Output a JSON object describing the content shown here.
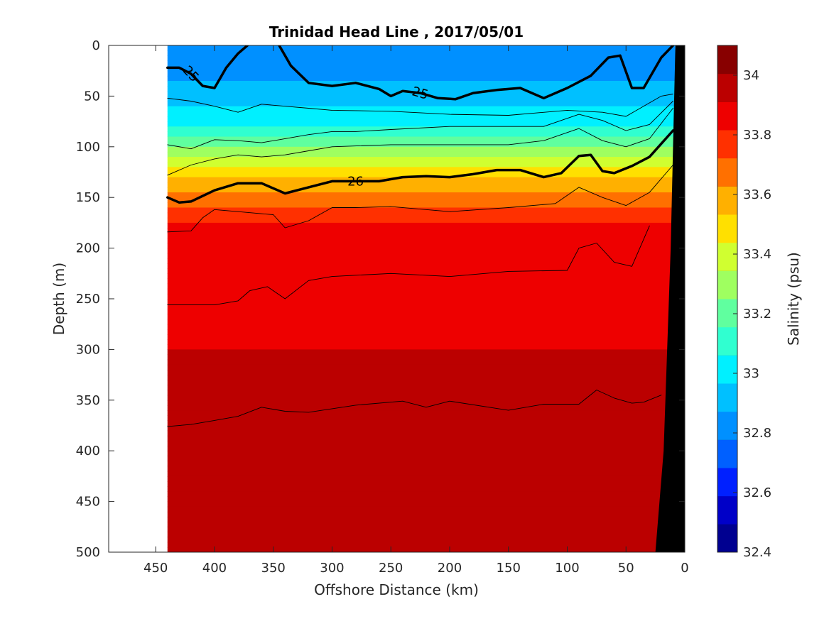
{
  "chart_data": {
    "type": "heatmap",
    "title": "Trinidad Head Line , 2017/05/01",
    "xlabel": "Offshore Distance (km)",
    "ylabel": "Depth (m)",
    "xlim": [
      490,
      0
    ],
    "ylim": [
      0,
      500
    ],
    "x_reversed": true,
    "y_reversed": true,
    "x_ticks": [
      450,
      400,
      350,
      300,
      250,
      200,
      150,
      100,
      50,
      0
    ],
    "y_ticks": [
      0,
      50,
      100,
      150,
      200,
      250,
      300,
      350,
      400,
      450,
      500
    ],
    "data_extent_km": [
      440,
      8
    ],
    "colorbar": {
      "label": "Salinity (psu)",
      "range": [
        32.4,
        34.1
      ],
      "step": 0.1,
      "ticks": [
        "32.4",
        "32.6",
        "32.8",
        "33",
        "33.2",
        "33.4",
        "33.6",
        "33.8",
        "34"
      ],
      "colors": [
        "#000090",
        "#0000c8",
        "#0020ff",
        "#0060ff",
        "#0090ff",
        "#00c0ff",
        "#00f0ff",
        "#30ffd0",
        "#60ff9f",
        "#9fff60",
        "#d0ff30",
        "#ffe000",
        "#ffb000",
        "#ff7000",
        "#ff3000",
        "#ee0000",
        "#bb0000",
        "#880000"
      ]
    },
    "salinity_depth_profile": [
      {
        "depth": 0,
        "salinity": 32.8
      },
      {
        "depth": 25,
        "salinity": 32.85
      },
      {
        "depth": 50,
        "salinity": 32.95
      },
      {
        "depth": 75,
        "salinity": 33.05
      },
      {
        "depth": 100,
        "salinity": 33.3
      },
      {
        "depth": 125,
        "salinity": 33.55
      },
      {
        "depth": 150,
        "salinity": 33.75
      },
      {
        "depth": 175,
        "salinity": 33.9
      },
      {
        "depth": 200,
        "salinity": 33.95
      },
      {
        "depth": 300,
        "salinity": 34.0
      },
      {
        "depth": 400,
        "salinity": 34.05
      },
      {
        "depth": 500,
        "salinity": 34.1
      }
    ],
    "density_contours": [
      {
        "label": "25",
        "label_shown": true,
        "points": [
          [
            440,
            22
          ],
          [
            430,
            22
          ],
          [
            420,
            28
          ],
          [
            410,
            40
          ],
          [
            400,
            42
          ],
          [
            390,
            22
          ],
          [
            380,
            8
          ],
          [
            372,
            0
          ]
        ]
      },
      {
        "label": "25",
        "label_shown": true,
        "points": [
          [
            345,
            0
          ],
          [
            335,
            20
          ],
          [
            320,
            37
          ],
          [
            300,
            40
          ],
          [
            280,
            37
          ],
          [
            260,
            43
          ],
          [
            250,
            50
          ],
          [
            240,
            45
          ],
          [
            225,
            47
          ],
          [
            210,
            52
          ],
          [
            195,
            53
          ],
          [
            180,
            47
          ],
          [
            160,
            44
          ],
          [
            140,
            42
          ],
          [
            120,
            52
          ],
          [
            100,
            42
          ],
          [
            80,
            30
          ],
          [
            65,
            12
          ],
          [
            55,
            10
          ],
          [
            45,
            42
          ],
          [
            35,
            42
          ],
          [
            20,
            12
          ],
          [
            10,
            0
          ]
        ]
      },
      {
        "label": "",
        "label_shown": false,
        "points": [
          [
            440,
            52
          ],
          [
            420,
            55
          ],
          [
            400,
            60
          ],
          [
            380,
            66
          ],
          [
            360,
            58
          ],
          [
            340,
            60
          ],
          [
            320,
            62
          ],
          [
            300,
            64
          ],
          [
            250,
            65
          ],
          [
            200,
            68
          ],
          [
            150,
            69
          ],
          [
            100,
            64
          ],
          [
            70,
            66
          ],
          [
            50,
            70
          ],
          [
            20,
            50
          ],
          [
            10,
            48
          ]
        ]
      },
      {
        "label": "",
        "label_shown": false,
        "points": [
          [
            440,
            98
          ],
          [
            420,
            102
          ],
          [
            400,
            93
          ],
          [
            380,
            94
          ],
          [
            360,
            96
          ],
          [
            340,
            92
          ],
          [
            320,
            88
          ],
          [
            300,
            85
          ],
          [
            280,
            85
          ],
          [
            250,
            83
          ],
          [
            200,
            80
          ],
          [
            150,
            80
          ],
          [
            120,
            80
          ],
          [
            90,
            68
          ],
          [
            70,
            74
          ],
          [
            50,
            84
          ],
          [
            30,
            78
          ],
          [
            10,
            55
          ]
        ]
      },
      {
        "label": "",
        "label_shown": false,
        "points": [
          [
            440,
            128
          ],
          [
            420,
            118
          ],
          [
            400,
            112
          ],
          [
            380,
            108
          ],
          [
            360,
            110
          ],
          [
            340,
            108
          ],
          [
            320,
            104
          ],
          [
            300,
            100
          ],
          [
            250,
            98
          ],
          [
            200,
            98
          ],
          [
            150,
            98
          ],
          [
            120,
            94
          ],
          [
            90,
            82
          ],
          [
            70,
            94
          ],
          [
            50,
            100
          ],
          [
            30,
            92
          ],
          [
            10,
            62
          ]
        ]
      },
      {
        "label": "26",
        "label_shown": true,
        "points": [
          [
            440,
            150
          ],
          [
            430,
            155
          ],
          [
            420,
            154
          ],
          [
            400,
            143
          ],
          [
            380,
            136
          ],
          [
            360,
            136
          ],
          [
            340,
            146
          ],
          [
            320,
            140
          ],
          [
            300,
            134
          ],
          [
            280,
            134
          ],
          [
            260,
            134
          ],
          [
            240,
            130
          ],
          [
            220,
            129
          ],
          [
            200,
            130
          ],
          [
            180,
            127
          ],
          [
            160,
            123
          ],
          [
            140,
            123
          ],
          [
            120,
            130
          ],
          [
            105,
            126
          ],
          [
            90,
            109
          ],
          [
            80,
            108
          ],
          [
            70,
            124
          ],
          [
            60,
            126
          ],
          [
            45,
            119
          ],
          [
            30,
            110
          ],
          [
            10,
            84
          ]
        ]
      },
      {
        "label": "",
        "label_shown": false,
        "points": [
          [
            440,
            184
          ],
          [
            420,
            183
          ],
          [
            410,
            170
          ],
          [
            400,
            162
          ],
          [
            380,
            164
          ],
          [
            350,
            167
          ],
          [
            340,
            180
          ],
          [
            320,
            173
          ],
          [
            300,
            160
          ],
          [
            280,
            160
          ],
          [
            250,
            159
          ],
          [
            200,
            164
          ],
          [
            150,
            160
          ],
          [
            110,
            156
          ],
          [
            90,
            140
          ],
          [
            70,
            150
          ],
          [
            50,
            158
          ],
          [
            30,
            145
          ],
          [
            10,
            118
          ]
        ]
      },
      {
        "label": "",
        "label_shown": false,
        "points": [
          [
            440,
            256
          ],
          [
            420,
            256
          ],
          [
            400,
            256
          ],
          [
            380,
            252
          ],
          [
            370,
            242
          ],
          [
            355,
            238
          ],
          [
            340,
            250
          ],
          [
            320,
            232
          ],
          [
            300,
            228
          ],
          [
            250,
            225
          ],
          [
            200,
            228
          ],
          [
            150,
            223
          ],
          [
            100,
            222
          ],
          [
            90,
            200
          ],
          [
            75,
            195
          ],
          [
            60,
            214
          ],
          [
            45,
            218
          ],
          [
            30,
            178
          ]
        ]
      },
      {
        "label": "",
        "label_shown": false,
        "points": [
          [
            440,
            376
          ],
          [
            420,
            374
          ],
          [
            400,
            370
          ],
          [
            380,
            366
          ],
          [
            360,
            357
          ],
          [
            340,
            361
          ],
          [
            320,
            362
          ],
          [
            280,
            355
          ],
          [
            240,
            351
          ],
          [
            220,
            357
          ],
          [
            200,
            351
          ],
          [
            150,
            360
          ],
          [
            120,
            354
          ],
          [
            90,
            354
          ],
          [
            75,
            340
          ],
          [
            60,
            348
          ],
          [
            45,
            353
          ],
          [
            35,
            352
          ],
          [
            20,
            345
          ]
        ]
      }
    ],
    "bottom_topography": [
      [
        8,
        0
      ],
      [
        12,
        200
      ],
      [
        18,
        400
      ],
      [
        25,
        500
      ]
    ]
  }
}
